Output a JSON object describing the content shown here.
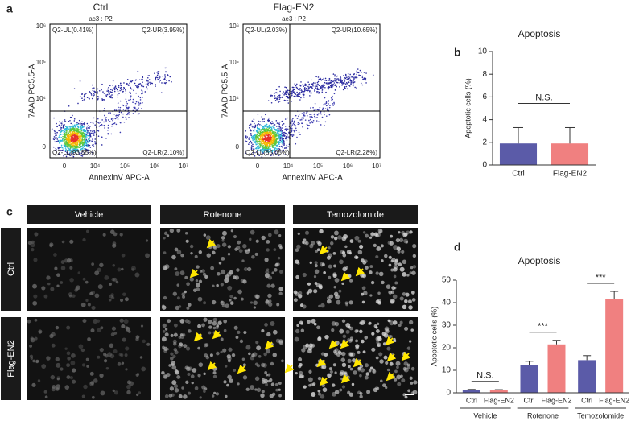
{
  "panel_labels": [
    "a",
    "b",
    "c",
    "d"
  ],
  "flow_plots": [
    {
      "title": "Ctrl",
      "gate": "ac3 : P2",
      "quadrants": [
        "Q2-UL(0.41%)",
        "Q2-UR(3.95%)",
        "Q2-LL(93.55%)",
        "Q2-LR(2.10%)"
      ],
      "y_label": "7AAD PC5.5-A",
      "x_label": "AnnexinV APC-A",
      "yticks": [
        "0",
        "10⁴",
        "10⁵",
        "10⁶"
      ],
      "xticks": [
        "0",
        "10⁴",
        "10⁵",
        "10⁶",
        "10⁷"
      ]
    },
    {
      "title": "Flag-EN2",
      "gate": "ae3 : P2",
      "quadrants": [
        "Q2-UL(2.03%)",
        "Q2-UR(10.65%)",
        "Q2-LL(85.05%)",
        "Q2-LR(2.28%)"
      ],
      "y_label": "7AAD PC5.5-A",
      "x_label": "AnnexinV APC-A",
      "yticks": [
        "0",
        "10⁴",
        "10⁵",
        "10⁶"
      ],
      "xticks": [
        "0",
        "10⁴",
        "10⁵",
        "10⁶",
        "10⁷"
      ]
    }
  ],
  "micrographs": {
    "columns": [
      "Vehicle",
      "Rotenone",
      "Temozolomide"
    ],
    "rows": [
      "Ctrl",
      "Flag-EN2"
    ]
  },
  "chart_data": [
    {
      "type": "bar",
      "title": "Apoptosis",
      "y_label": "Apoptotic cells (%)",
      "categories": [
        "Ctrl",
        "Flag-EN2"
      ],
      "values": [
        1.9,
        1.9
      ],
      "errors": [
        1.4,
        1.4
      ],
      "colors": [
        "#5b5ba8",
        "#f08080"
      ],
      "ylim": [
        0,
        10
      ],
      "yticks": [
        0,
        2,
        4,
        6,
        8,
        10
      ],
      "annotations": [
        "N.S."
      ]
    },
    {
      "type": "grouped_bar",
      "title": "Apoptosis",
      "y_label": "Apoptotic cells (%)",
      "categories": [
        "Vehicle",
        "Rotenone",
        "Temozolomide"
      ],
      "series": [
        {
          "name": "Ctrl",
          "color": "#5b5ba8",
          "values": [
            1.2,
            12.5,
            14.5
          ],
          "errors": [
            0.3,
            1.5,
            2
          ]
        },
        {
          "name": "Flag-EN2",
          "color": "#f08080",
          "values": [
            1.1,
            21.5,
            41.5
          ],
          "errors": [
            0.3,
            1.8,
            3.5
          ]
        }
      ],
      "ylim": [
        0,
        50
      ],
      "yticks": [
        0,
        10,
        20,
        30,
        40,
        50
      ],
      "annotations": [
        "N.S.",
        "***",
        "***"
      ]
    }
  ]
}
